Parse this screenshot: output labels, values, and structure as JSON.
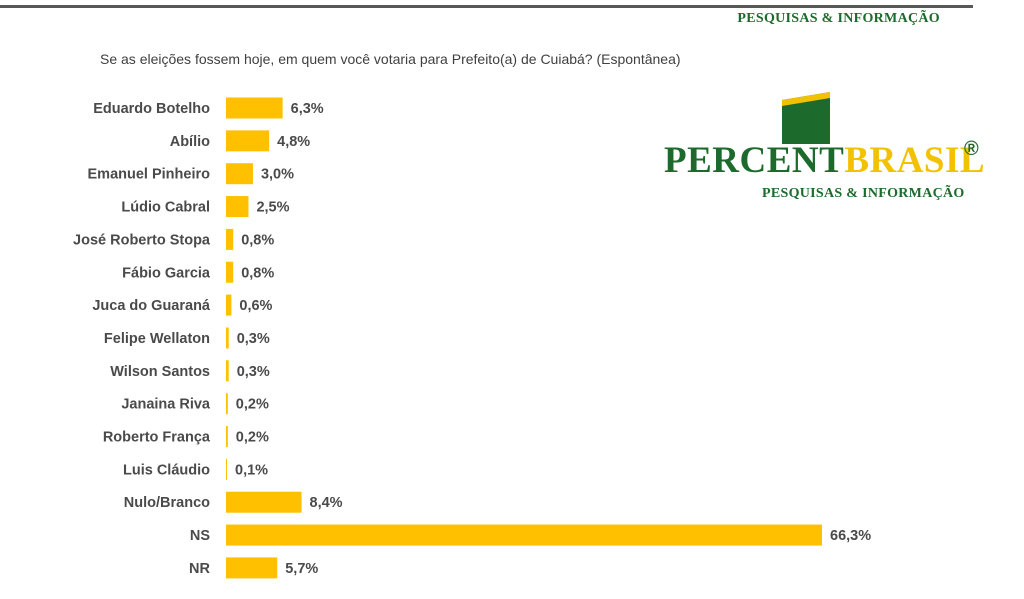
{
  "header": {
    "tagline": "PESQUISAS & INFORMAÇÃO"
  },
  "question": "Se as eleições fossem hoje, em quem você votaria para Prefeito(a) de Cuiabá? (Espontânea)",
  "logo": {
    "word_part1": "PERCENT",
    "word_part2": "BRASIL",
    "registered": "®",
    "tagline": "PESQUISAS & INFORMAÇÃO"
  },
  "colors": {
    "bar": "#ffc000",
    "brand_green": "#1c6b2c",
    "brand_yellow": "#f2c200",
    "label": "#4a4a4a"
  },
  "chart_data": {
    "type": "bar",
    "orientation": "horizontal",
    "title": "Se as eleições fossem hoje, em quem você votaria para Prefeito(a) de Cuiabá? (Espontânea)",
    "categories": [
      "Eduardo Botelho",
      "Abílio",
      "Emanuel Pinheiro",
      "Lúdio Cabral",
      "José Roberto Stopa",
      "Fábio Garcia",
      "Juca do Guaraná",
      "Felipe Wellaton",
      "Wilson Santos",
      "Janaina Riva",
      "Roberto França",
      "Luis Cláudio",
      "Nulo/Branco",
      "NS",
      "NR"
    ],
    "values": [
      6.3,
      4.8,
      3.0,
      2.5,
      0.8,
      0.8,
      0.6,
      0.3,
      0.3,
      0.2,
      0.2,
      0.1,
      8.4,
      66.3,
      5.7
    ],
    "value_labels": [
      "6,3%",
      "4,8%",
      "3,0%",
      "2,5%",
      "0,8%",
      "0,8%",
      "0,6%",
      "0,3%",
      "0,3%",
      "0,2%",
      "0,2%",
      "0,1%",
      "8,4%",
      "66,3%",
      "5,7%"
    ],
    "xlabel": "",
    "ylabel": "",
    "xlim": [
      0,
      66.3
    ],
    "grid": false,
    "legend": "none"
  }
}
